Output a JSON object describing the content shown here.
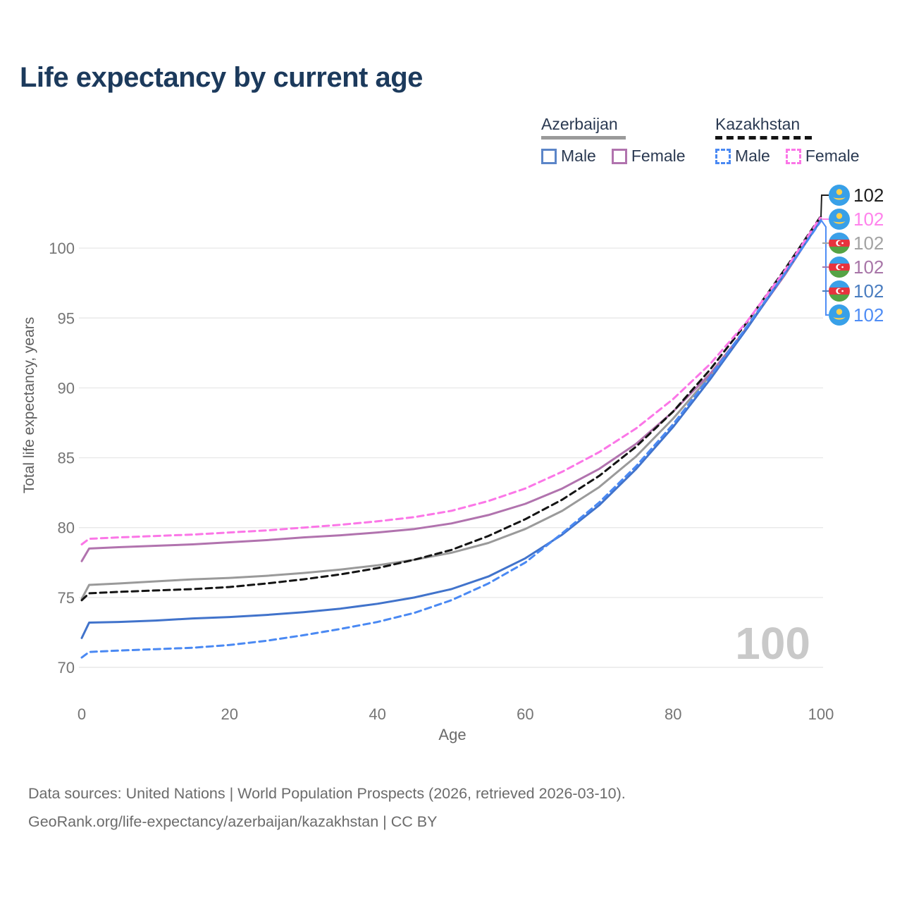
{
  "title": "Life expectancy by current age",
  "watermark_age": "100",
  "legend": {
    "groups": [
      {
        "label": "Azerbaijan",
        "line_style": "solid",
        "underline_color": "#9a9a9a",
        "items": [
          {
            "label": "Male",
            "color": "#4173cb",
            "dashed": false
          },
          {
            "label": "Female",
            "color": "#b173ae",
            "dashed": false
          }
        ]
      },
      {
        "label": "Kazakhstan",
        "line_style": "dashed",
        "underline_color": "#141414",
        "items": [
          {
            "label": "Male",
            "color": "#4a89f3",
            "dashed": true
          },
          {
            "label": "Female",
            "color": "#fb76e7",
            "dashed": true
          }
        ]
      }
    ]
  },
  "chart_data": {
    "type": "line",
    "title": "Life expectancy by current age",
    "xlabel": "Age",
    "ylabel": "Total life expectancy, years",
    "xlim": [
      0,
      100
    ],
    "ylim": [
      69.5,
      103
    ],
    "xticks": [
      0,
      20,
      40,
      60,
      80,
      100
    ],
    "yticks": [
      70,
      75,
      80,
      85,
      90,
      95,
      100
    ],
    "grid": "horizontal",
    "legend_position": "top-right",
    "x": [
      0,
      1,
      5,
      10,
      15,
      20,
      25,
      30,
      35,
      40,
      45,
      50,
      55,
      60,
      65,
      70,
      75,
      80,
      85,
      90,
      95,
      100
    ],
    "series": [
      {
        "name": "Azerbaijan (both sexes)",
        "country": "Azerbaijan",
        "sex": "Total",
        "color": "#9a9a9a",
        "dash": "solid",
        "end_value_label": "102",
        "values": [
          74.9,
          75.9,
          76.0,
          76.15,
          76.3,
          76.4,
          76.55,
          76.75,
          77.0,
          77.3,
          77.7,
          78.2,
          78.9,
          79.9,
          81.2,
          82.9,
          85.1,
          87.8,
          90.85,
          94.35,
          98.1,
          102.1
        ]
      },
      {
        "name": "Azerbaijan Female",
        "country": "Azerbaijan",
        "sex": "Female",
        "color": "#b173ae",
        "dash": "solid",
        "end_value_label": "102",
        "values": [
          77.6,
          78.5,
          78.6,
          78.7,
          78.8,
          78.95,
          79.1,
          79.3,
          79.45,
          79.65,
          79.9,
          80.3,
          80.9,
          81.7,
          82.8,
          84.2,
          86.0,
          88.3,
          91.0,
          94.3,
          98.0,
          102.05
        ]
      },
      {
        "name": "Azerbaijan Male",
        "country": "Azerbaijan",
        "sex": "Male",
        "color": "#4173cb",
        "dash": "solid",
        "end_value_label": "102",
        "values": [
          72.1,
          73.2,
          73.25,
          73.35,
          73.5,
          73.6,
          73.75,
          73.95,
          74.2,
          74.55,
          75.0,
          75.6,
          76.5,
          77.8,
          79.5,
          81.6,
          84.2,
          87.2,
          90.6,
          94.25,
          98.1,
          102.0
        ]
      },
      {
        "name": "Kazakhstan (both sexes)",
        "country": "Kazakhstan",
        "sex": "Total",
        "color": "#141414",
        "dash": "dashed",
        "end_value_label": "102",
        "values": [
          74.8,
          75.3,
          75.4,
          75.5,
          75.6,
          75.75,
          76.0,
          76.3,
          76.65,
          77.1,
          77.7,
          78.4,
          79.4,
          80.6,
          82.0,
          83.7,
          85.8,
          88.3,
          91.3,
          94.7,
          98.4,
          102.3
        ]
      },
      {
        "name": "Kazakhstan Female",
        "country": "Kazakhstan",
        "sex": "Female",
        "color": "#fb76e7",
        "dash": "dashed",
        "end_value_label": "102",
        "values": [
          78.8,
          79.2,
          79.3,
          79.4,
          79.5,
          79.65,
          79.8,
          80.0,
          80.2,
          80.45,
          80.75,
          81.2,
          81.9,
          82.8,
          84.0,
          85.4,
          87.1,
          89.2,
          91.7,
          94.75,
          98.3,
          102.25
        ]
      },
      {
        "name": "Kazakhstan Male",
        "country": "Kazakhstan",
        "sex": "Male",
        "color": "#4a89f3",
        "dash": "dashed",
        "end_value_label": "102",
        "values": [
          70.7,
          71.1,
          71.2,
          71.3,
          71.4,
          71.6,
          71.9,
          72.3,
          72.75,
          73.25,
          73.9,
          74.8,
          76.0,
          77.5,
          79.6,
          81.8,
          84.4,
          87.4,
          90.8,
          94.4,
          98.1,
          101.95
        ]
      }
    ],
    "end_labels": [
      {
        "flag": "kazakhstan",
        "text": "102",
        "color": "#1f1f1f",
        "series": "Kazakhstan (both sexes)"
      },
      {
        "flag": "kazakhstan",
        "text": "102",
        "color": "#ff83ec",
        "series": "Kazakhstan Female"
      },
      {
        "flag": "azerbaijan",
        "text": "102",
        "color": "#a3a3a3",
        "series": "Azerbaijan (both sexes)"
      },
      {
        "flag": "azerbaijan",
        "text": "102",
        "color": "#a876a8",
        "series": "Azerbaijan Female"
      },
      {
        "flag": "azerbaijan",
        "text": "102",
        "color": "#4a7dc0",
        "series": "Azerbaijan Male"
      },
      {
        "flag": "kazakhstan",
        "text": "102",
        "color": "#4f8df5",
        "series": "Kazakhstan Male"
      }
    ]
  },
  "footer": {
    "line1": "Data sources: United Nations | World Population Prospects (2026, retrieved 2026-03-10).",
    "line2": "GeoRank.org/life-expectancy/azerbaijan/kazakhstan | CC BY"
  }
}
